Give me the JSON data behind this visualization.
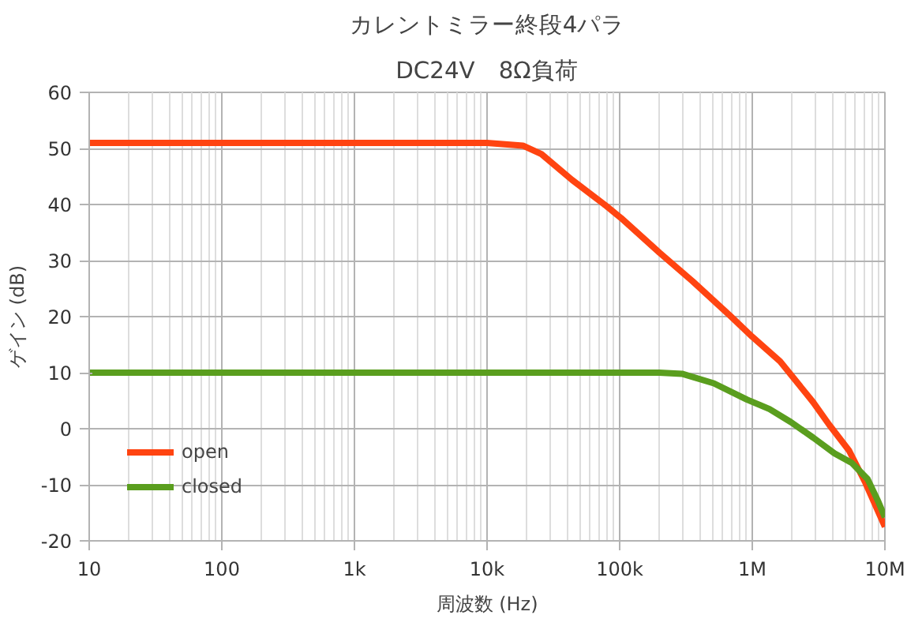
{
  "chart_data": {
    "type": "line",
    "title": "カレントミラー終段4パラ",
    "subtitle": "DC24V　8Ω負荷",
    "xlabel": "周波数 (Hz)",
    "ylabel": "ゲイン (dB)",
    "log": "x",
    "xlim": [
      10,
      10000000
    ],
    "xticks": [
      10,
      100,
      {
        "value": 1000,
        "label": "1k"
      },
      {
        "value": 10000,
        "label": "10k"
      },
      {
        "value": 100000,
        "label": "100k"
      },
      {
        "value": 1000000,
        "label": "1M"
      },
      {
        "value": 10000000,
        "label": "10M"
      }
    ],
    "ylim": [
      -20,
      60
    ],
    "yticks": [
      -20,
      -10,
      0,
      10,
      20,
      30,
      40,
      50,
      60
    ],
    "grid": true,
    "legend": "bottom left",
    "marker": "none",
    "line_style": "solid",
    "series": [
      {
        "name": "open",
        "color": "#ff4411",
        "x": [
          10,
          10000,
          18621,
          25704,
          43652,
          77625,
          102329,
          199526,
          354813,
          691831,
          1000000,
          1621810,
          2884032,
          3801894,
          5370318,
          7079458,
          10000000
        ],
        "values": [
          51,
          51,
          50.5,
          49,
          44.4,
          39.9,
          37.6,
          31.4,
          26.3,
          20,
          16.4,
          12,
          4.7,
          0.7,
          -3.9,
          -9.5,
          -17.5
        ]
      },
      {
        "name": "closed",
        "color": "#5a9e1e",
        "x": [
          10,
          199526,
          295121,
          512861,
          912011,
          1348963,
          1949845,
          2884032,
          4168694,
          5623413,
          7413102,
          8912509,
          10000000
        ],
        "values": [
          10,
          10,
          9.8,
          8.1,
          5.2,
          3.5,
          1.2,
          -1.6,
          -4.4,
          -6.1,
          -9,
          -13,
          -15.8
        ]
      }
    ]
  }
}
